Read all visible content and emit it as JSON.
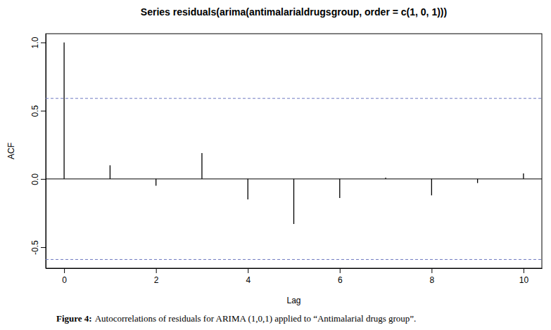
{
  "chart_data": {
    "type": "bar",
    "title": "Series  residuals(arima(antimalarialdrugsgroup, order = c(1, 0, 1)))",
    "x_label": "Lag",
    "y_label": "ACF",
    "caption_label": "Figure 4:",
    "caption": "Autocorrelations of residuals for ARIMA (1,0,1) applied to “Antimalarial drugs group”.",
    "x": [
      0,
      1,
      2,
      3,
      4,
      5,
      6,
      7,
      8,
      9,
      10
    ],
    "values": [
      1.0,
      0.1,
      -0.05,
      0.19,
      -0.15,
      -0.33,
      -0.14,
      0.01,
      -0.12,
      -0.03,
      0.04
    ],
    "color": "#000000",
    "confidence_bounds": [
      -0.59,
      0.59
    ],
    "xlim": [
      -0.4,
      10.4
    ],
    "ylim": [
      -0.654,
      1.064
    ],
    "xticks": [
      0,
      2,
      4,
      6,
      8,
      10
    ],
    "yticks": [
      -0.5,
      {
        "value": 0,
        "label": "0.0"
      },
      0.5,
      {
        "value": 1,
        "label": "1.0"
      }
    ]
  }
}
